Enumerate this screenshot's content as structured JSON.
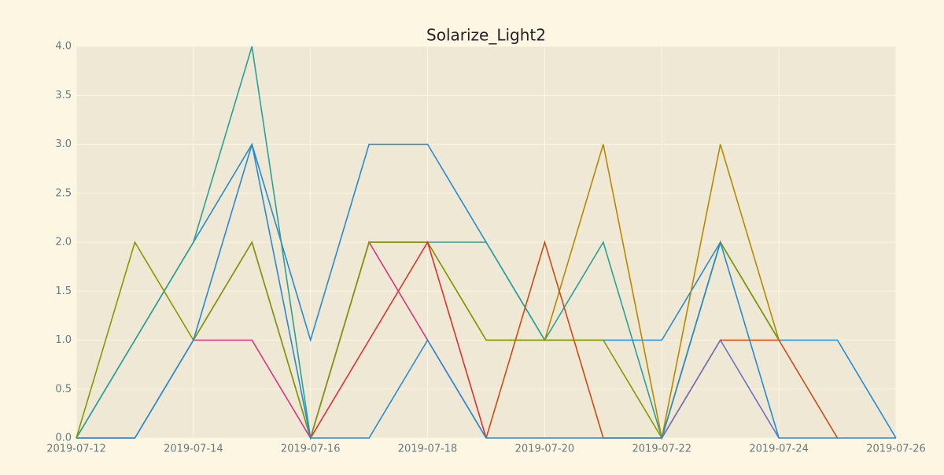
{
  "chart_data": {
    "type": "line",
    "title": "Solarize_Light2",
    "x": [
      "2019-07-12",
      "2019-07-13",
      "2019-07-14",
      "2019-07-15",
      "2019-07-16",
      "2019-07-17",
      "2019-07-18",
      "2019-07-19",
      "2019-07-20",
      "2019-07-21",
      "2019-07-22",
      "2019-07-23",
      "2019-07-24",
      "2019-07-25",
      "2019-07-26"
    ],
    "xlim": [
      "2019-07-12",
      "2019-07-26"
    ],
    "xticks": [
      "2019-07-12",
      "2019-07-14",
      "2019-07-16",
      "2019-07-18",
      "2019-07-20",
      "2019-07-22",
      "2019-07-24",
      "2019-07-26"
    ],
    "ylim": [
      0,
      4
    ],
    "yticks": [
      {
        "value": 0,
        "label": "0.0"
      },
      {
        "value": 0.5,
        "label": "0.5"
      },
      {
        "value": 1,
        "label": "1.0"
      },
      {
        "value": 1.5,
        "label": "1.5"
      },
      {
        "value": 2,
        "label": "2.0"
      },
      {
        "value": 2.5,
        "label": "2.5"
      },
      {
        "value": 3,
        "label": "3.0"
      },
      {
        "value": 3.5,
        "label": "3.5"
      },
      {
        "value": 4,
        "label": "4.0"
      }
    ],
    "grid": true,
    "series": [
      {
        "color": "#268bd2",
        "values": [
          0,
          1,
          2,
          3,
          1,
          3,
          3,
          2,
          1,
          1,
          1,
          2,
          1,
          1,
          0
        ]
      },
      {
        "color": "#2aa198",
        "values": [
          0,
          1,
          2,
          4,
          0,
          2,
          2,
          2,
          1,
          2,
          0,
          2,
          1,
          null,
          null
        ]
      },
      {
        "color": "#d33682",
        "values": [
          null,
          null,
          1,
          1,
          0,
          2,
          1,
          0,
          null,
          null,
          null,
          null,
          null,
          null,
          null
        ]
      },
      {
        "color": "#b58900",
        "values": [
          null,
          null,
          null,
          null,
          null,
          2,
          2,
          1,
          1,
          3,
          0,
          3,
          1,
          null,
          null
        ]
      },
      {
        "color": "#cb4b16",
        "values": [
          null,
          null,
          null,
          null,
          null,
          null,
          null,
          0,
          2,
          0,
          0,
          1,
          1,
          0,
          null
        ]
      },
      {
        "color": "#6c71c4",
        "values": [
          0,
          0,
          1,
          2,
          0,
          null,
          null,
          null,
          null,
          null,
          0,
          1,
          0,
          null,
          null
        ]
      },
      {
        "color": "#859900",
        "values": [
          0,
          2,
          1,
          2,
          0,
          2,
          2,
          1,
          1,
          1,
          0,
          2,
          1,
          null,
          null
        ]
      },
      {
        "color": "#dc322f",
        "values": [
          null,
          null,
          null,
          null,
          0,
          1,
          2,
          0,
          null,
          null,
          null,
          null,
          null,
          null,
          null
        ]
      },
      {
        "color": "#268bd2",
        "values": [
          0,
          0,
          1,
          3,
          0,
          0,
          1,
          0,
          0,
          0,
          0,
          2,
          0,
          0,
          0
        ]
      }
    ]
  }
}
